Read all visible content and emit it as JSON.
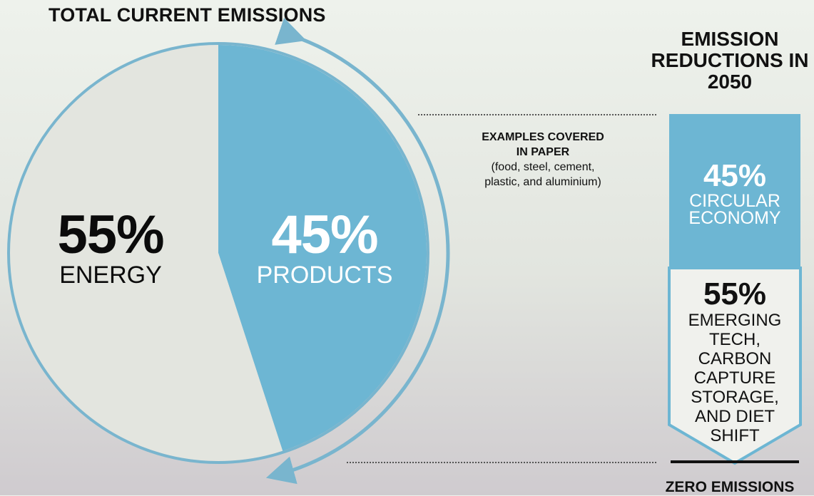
{
  "titles": {
    "left": "TOTAL CURRENT EMISSIONS",
    "right": "EMISSION REDUCTIONS IN 2050"
  },
  "chart_data": [
    {
      "type": "pie",
      "title": "TOTAL CURRENT EMISSIONS",
      "slices": [
        {
          "value": 55,
          "pct_label": "55%",
          "label": "ENERGY",
          "color": "#e3e5df"
        },
        {
          "value": 45,
          "pct_label": "45%",
          "label": "PRODUCTS",
          "color": "#6db6d3"
        }
      ]
    },
    {
      "type": "bar",
      "title": "EMISSION REDUCTIONS IN 2050",
      "categories": [
        "CIRCULAR ECONOMY",
        "EMERGING TECH, CARBON CAPTURE STORAGE, AND DIET SHIFT"
      ],
      "values": [
        45,
        55
      ],
      "pct_labels": [
        "45%",
        "55%"
      ],
      "colors": [
        "#6db6d3",
        "#f0f1ed"
      ],
      "end_label": "ZERO EMISSIONS"
    }
  ],
  "annotation": {
    "heading_line1": "EXAMPLES COVERED",
    "heading_line2": "IN PAPER",
    "detail_line1": "(food, steel, cement,",
    "detail_line2": "plastic, and aluminium)"
  },
  "column": {
    "top_pct": "45%",
    "top_line1": "CIRCULAR",
    "top_line2": "ECONOMY",
    "bottom_pct": "55%",
    "bottom_lines": [
      "EMERGING",
      "TECH,",
      "CARBON",
      "CAPTURE",
      "STORAGE,",
      "AND DIET",
      "SHIFT"
    ],
    "zero_label": "ZERO EMISSIONS"
  },
  "colors": {
    "accent": "#6db6d3",
    "ring": "#79b5ce",
    "dark": "#111111"
  }
}
